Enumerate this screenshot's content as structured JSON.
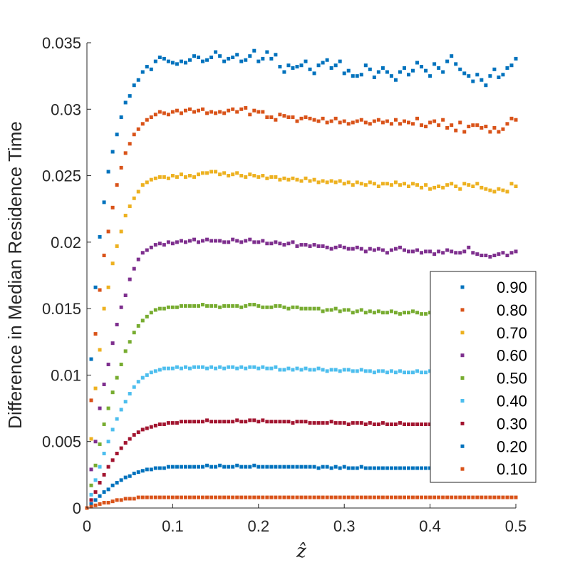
{
  "chart_data": {
    "type": "scatter",
    "title": "",
    "xlabel": "ẑ",
    "ylabel": "Difference in Median Residence Time",
    "xlim": [
      0,
      0.5
    ],
    "ylim": [
      0,
      0.035
    ],
    "grid": false,
    "legend_position": "lower-right",
    "x_ticks": [
      0,
      0.1,
      0.2,
      0.3,
      0.4,
      0.5
    ],
    "x_tick_labels": [
      "0",
      "0.1",
      "0.2",
      "0.3",
      "0.4",
      "0.5"
    ],
    "y_ticks": [
      0,
      0.005,
      0.01,
      0.015,
      0.02,
      0.025,
      0.03,
      0.035
    ],
    "y_tick_labels": [
      "0",
      "0.005",
      "0.01",
      "0.015",
      "0.02",
      "0.025",
      "0.03",
      "0.035"
    ],
    "x_start": 0,
    "x_step": 0.005,
    "series": [
      {
        "name": "0.90",
        "color": "#0072BD",
        "values": [
          0.0,
          0.0112,
          0.0166,
          0.0204,
          0.023,
          0.0253,
          0.0268,
          0.0281,
          0.0294,
          0.0305,
          0.031,
          0.0318,
          0.0322,
          0.0328,
          0.0332,
          0.033,
          0.0336,
          0.0339,
          0.0338,
          0.0336,
          0.0335,
          0.0334,
          0.0336,
          0.0335,
          0.0337,
          0.034,
          0.0339,
          0.0336,
          0.0337,
          0.0339,
          0.0343,
          0.034,
          0.0336,
          0.0338,
          0.0339,
          0.0341,
          0.0336,
          0.0337,
          0.034,
          0.0344,
          0.0336,
          0.0338,
          0.0343,
          0.0338,
          0.0341,
          0.0332,
          0.0328,
          0.0333,
          0.0331,
          0.0332,
          0.0333,
          0.0336,
          0.033,
          0.0327,
          0.0333,
          0.0335,
          0.0337,
          0.0331,
          0.0333,
          0.0336,
          0.0327,
          0.0329,
          0.0325,
          0.0325,
          0.0326,
          0.0333,
          0.033,
          0.0324,
          0.0328,
          0.0331,
          0.0328,
          0.0325,
          0.0322,
          0.0328,
          0.0331,
          0.0326,
          0.0329,
          0.0335,
          0.0332,
          0.0329,
          0.0325,
          0.0334,
          0.0331,
          0.0328,
          0.0336,
          0.034,
          0.0334,
          0.033,
          0.0327,
          0.0325,
          0.0321,
          0.0326,
          0.0322,
          0.0318,
          0.0325,
          0.033,
          0.0324,
          0.0326,
          0.0331,
          0.0333,
          0.0338,
          0.0331
        ]
      },
      {
        "name": "0.80",
        "color": "#D95319",
        "values": [
          0.0,
          0.0081,
          0.0131,
          0.0164,
          0.019,
          0.0208,
          0.0226,
          0.0243,
          0.0256,
          0.0267,
          0.0274,
          0.0281,
          0.0285,
          0.0289,
          0.0292,
          0.0294,
          0.0296,
          0.0298,
          0.0297,
          0.0296,
          0.0298,
          0.0299,
          0.0297,
          0.0299,
          0.03,
          0.0298,
          0.0299,
          0.03,
          0.0297,
          0.0298,
          0.0297,
          0.0298,
          0.0297,
          0.0299,
          0.03,
          0.0298,
          0.03,
          0.0301,
          0.0296,
          0.0299,
          0.0298,
          0.0298,
          0.0294,
          0.0294,
          0.0292,
          0.0296,
          0.0295,
          0.0294,
          0.0294,
          0.0291,
          0.0293,
          0.0294,
          0.0293,
          0.0292,
          0.0291,
          0.0293,
          0.029,
          0.0291,
          0.0293,
          0.029,
          0.0291,
          0.0289,
          0.029,
          0.0291,
          0.0292,
          0.029,
          0.0289,
          0.0291,
          0.0292,
          0.029,
          0.0291,
          0.0289,
          0.0292,
          0.0289,
          0.0291,
          0.029,
          0.0289,
          0.0293,
          0.0288,
          0.0287,
          0.029,
          0.0291,
          0.0288,
          0.0292,
          0.0286,
          0.0288,
          0.0284,
          0.029,
          0.0283,
          0.0287,
          0.0288,
          0.0288,
          0.0286,
          0.0287,
          0.0283,
          0.0286,
          0.0283,
          0.0285,
          0.0289,
          0.0293,
          0.0292,
          0.0287
        ]
      },
      {
        "name": "0.70",
        "color": "#EDB120",
        "values": [
          0.0,
          0.0052,
          0.009,
          0.0119,
          0.015,
          0.0166,
          0.0184,
          0.0197,
          0.0208,
          0.022,
          0.0227,
          0.0233,
          0.0238,
          0.0243,
          0.0245,
          0.0247,
          0.0248,
          0.0249,
          0.0249,
          0.0248,
          0.025,
          0.0249,
          0.0251,
          0.0249,
          0.025,
          0.0249,
          0.0251,
          0.0252,
          0.0252,
          0.0253,
          0.0253,
          0.0251,
          0.0252,
          0.025,
          0.0251,
          0.0252,
          0.025,
          0.0249,
          0.0251,
          0.025,
          0.0249,
          0.025,
          0.0248,
          0.0249,
          0.0249,
          0.0247,
          0.0248,
          0.0247,
          0.0248,
          0.0247,
          0.0246,
          0.0248,
          0.0246,
          0.0247,
          0.0245,
          0.0246,
          0.0245,
          0.0246,
          0.0245,
          0.0246,
          0.0244,
          0.0245,
          0.0243,
          0.0245,
          0.0244,
          0.0243,
          0.0245,
          0.0244,
          0.0242,
          0.0244,
          0.0244,
          0.0243,
          0.0245,
          0.0243,
          0.0244,
          0.0242,
          0.0244,
          0.0243,
          0.0241,
          0.0243,
          0.024,
          0.0241,
          0.0242,
          0.0241,
          0.0243,
          0.0244,
          0.0242,
          0.024,
          0.0244,
          0.0243,
          0.0242,
          0.0244,
          0.0241,
          0.024,
          0.0239,
          0.0238,
          0.024,
          0.0239,
          0.0238,
          0.0244,
          0.0242,
          0.0239
        ]
      },
      {
        "name": "0.60",
        "color": "#7E2F8E",
        "values": [
          0.0,
          0.0029,
          0.005,
          0.0075,
          0.0093,
          0.0108,
          0.0124,
          0.0138,
          0.0151,
          0.016,
          0.0172,
          0.018,
          0.0187,
          0.0192,
          0.0194,
          0.0196,
          0.0198,
          0.0199,
          0.0198,
          0.02,
          0.0199,
          0.02,
          0.0201,
          0.02,
          0.0201,
          0.0202,
          0.02,
          0.0201,
          0.0202,
          0.0201,
          0.0201,
          0.0201,
          0.02,
          0.02,
          0.0202,
          0.0201,
          0.02,
          0.0201,
          0.0202,
          0.02,
          0.02,
          0.0201,
          0.0199,
          0.0199,
          0.02,
          0.0199,
          0.0198,
          0.0199,
          0.02,
          0.0197,
          0.0198,
          0.0198,
          0.0197,
          0.0198,
          0.0197,
          0.0197,
          0.0196,
          0.0195,
          0.0196,
          0.0197,
          0.0196,
          0.0195,
          0.0195,
          0.0196,
          0.0195,
          0.0193,
          0.0195,
          0.0194,
          0.0195,
          0.0194,
          0.0192,
          0.0194,
          0.0195,
          0.0196,
          0.0194,
          0.0193,
          0.0193,
          0.0194,
          0.0192,
          0.0193,
          0.0193,
          0.0191,
          0.0193,
          0.0192,
          0.0194,
          0.0193,
          0.0192,
          0.0192,
          0.0193,
          0.0196,
          0.0192,
          0.0191,
          0.019,
          0.019,
          0.0189,
          0.019,
          0.0191,
          0.0192,
          0.019,
          0.0192,
          0.0193,
          0.0193
        ]
      },
      {
        "name": "0.50",
        "color": "#77AC30",
        "values": [
          0.0,
          0.0017,
          0.0032,
          0.0048,
          0.0063,
          0.0075,
          0.0087,
          0.0098,
          0.0108,
          0.0118,
          0.0125,
          0.0132,
          0.0137,
          0.0141,
          0.0144,
          0.0147,
          0.0149,
          0.015,
          0.015,
          0.0151,
          0.0151,
          0.0151,
          0.0152,
          0.0152,
          0.0152,
          0.0152,
          0.0152,
          0.0153,
          0.0152,
          0.0152,
          0.0152,
          0.0151,
          0.0152,
          0.0152,
          0.0152,
          0.0152,
          0.0151,
          0.0152,
          0.0153,
          0.0153,
          0.0152,
          0.0151,
          0.0151,
          0.0151,
          0.0152,
          0.0152,
          0.0151,
          0.015,
          0.0151,
          0.0151,
          0.015,
          0.015,
          0.015,
          0.015,
          0.015,
          0.0148,
          0.0149,
          0.0149,
          0.015,
          0.0148,
          0.0149,
          0.0149,
          0.0147,
          0.0148,
          0.0149,
          0.0147,
          0.0148,
          0.0147,
          0.0148,
          0.0147,
          0.0147,
          0.0148,
          0.0147,
          0.0146,
          0.0147,
          0.0147,
          0.0148,
          0.0147,
          0.0146,
          0.0146,
          0.0147,
          0.0148,
          0.0146,
          0.0146,
          0.0147,
          0.0146,
          0.0148,
          0.0146,
          0.0145,
          0.0147,
          0.0146,
          0.0147,
          0.0146,
          0.0147,
          0.0146,
          0.0147,
          0.0148,
          0.0146,
          0.0145,
          0.0147,
          0.0146,
          0.0146
        ]
      },
      {
        "name": "0.40",
        "color": "#4DBEEE",
        "values": [
          0.0,
          0.001,
          0.0021,
          0.0031,
          0.0041,
          0.005,
          0.0059,
          0.0067,
          0.0074,
          0.008,
          0.0086,
          0.0091,
          0.0095,
          0.0098,
          0.01,
          0.0102,
          0.0103,
          0.0104,
          0.0105,
          0.0105,
          0.0105,
          0.0106,
          0.0105,
          0.0106,
          0.0105,
          0.0106,
          0.0106,
          0.0106,
          0.0105,
          0.0106,
          0.0105,
          0.0106,
          0.0105,
          0.0106,
          0.0106,
          0.0105,
          0.0106,
          0.0105,
          0.0106,
          0.0106,
          0.0105,
          0.0106,
          0.0105,
          0.0105,
          0.0106,
          0.0104,
          0.0104,
          0.0105,
          0.0104,
          0.0105,
          0.0104,
          0.0105,
          0.0104,
          0.0104,
          0.0105,
          0.0104,
          0.0103,
          0.0104,
          0.0104,
          0.0103,
          0.0104,
          0.0104,
          0.0103,
          0.0103,
          0.0104,
          0.0103,
          0.0103,
          0.0102,
          0.0103,
          0.0103,
          0.0102,
          0.0103,
          0.0102,
          0.0103,
          0.0102,
          0.0102,
          0.0102,
          0.0103,
          0.0102,
          0.0102,
          0.0103,
          0.0102,
          0.0102,
          0.0103,
          0.0102,
          0.0102,
          0.0102,
          0.0103,
          0.0102,
          0.0102,
          0.0102,
          0.0102,
          0.0102,
          0.0103,
          0.0102,
          0.0103,
          0.0103,
          0.0102,
          0.0102,
          0.0102,
          0.0103,
          0.0102
        ]
      },
      {
        "name": "0.30",
        "color": "#A2142F",
        "values": [
          0.0,
          0.0006,
          0.0012,
          0.0019,
          0.0025,
          0.0031,
          0.0036,
          0.0041,
          0.0045,
          0.0049,
          0.0052,
          0.0055,
          0.0057,
          0.0059,
          0.006,
          0.0061,
          0.0062,
          0.0063,
          0.0063,
          0.0064,
          0.0064,
          0.0064,
          0.0065,
          0.0065,
          0.0065,
          0.0065,
          0.0065,
          0.0065,
          0.0066,
          0.0065,
          0.0065,
          0.0065,
          0.0065,
          0.0065,
          0.0065,
          0.0066,
          0.0065,
          0.0065,
          0.0066,
          0.0066,
          0.0065,
          0.0066,
          0.0065,
          0.0065,
          0.0065,
          0.0065,
          0.0065,
          0.0065,
          0.0064,
          0.0065,
          0.0065,
          0.0065,
          0.0064,
          0.0064,
          0.0064,
          0.0064,
          0.0064,
          0.0065,
          0.0064,
          0.0064,
          0.0064,
          0.0063,
          0.0064,
          0.0064,
          0.0064,
          0.0063,
          0.0064,
          0.0063,
          0.0063,
          0.0064,
          0.0063,
          0.0063,
          0.0063,
          0.0064,
          0.0063,
          0.0063,
          0.0063,
          0.0063,
          0.0063,
          0.0063,
          0.0063,
          0.0063,
          0.0063,
          0.0063,
          0.0063,
          0.0063,
          0.0062,
          0.0063,
          0.0063,
          0.0063,
          0.0063,
          0.0062,
          0.0063,
          0.0063,
          0.0063,
          0.0062,
          0.0063,
          0.0063,
          0.0062,
          0.0062,
          0.0063,
          0.0063
        ]
      },
      {
        "name": "0.20",
        "color": "#0072BD",
        "values": [
          0.0,
          0.0003,
          0.0006,
          0.0009,
          0.0012,
          0.0014,
          0.0017,
          0.0019,
          0.0021,
          0.0023,
          0.0024,
          0.0026,
          0.0027,
          0.0028,
          0.0029,
          0.0029,
          0.003,
          0.003,
          0.003,
          0.0031,
          0.0031,
          0.0031,
          0.0031,
          0.0031,
          0.0031,
          0.0031,
          0.0031,
          0.0031,
          0.0032,
          0.0031,
          0.0031,
          0.0032,
          0.0031,
          0.0031,
          0.0031,
          0.0032,
          0.0031,
          0.0031,
          0.0031,
          0.0032,
          0.0031,
          0.0031,
          0.0031,
          0.0031,
          0.0031,
          0.0031,
          0.0031,
          0.0031,
          0.0031,
          0.0031,
          0.0031,
          0.0031,
          0.0031,
          0.0031,
          0.003,
          0.0031,
          0.0031,
          0.003,
          0.0031,
          0.003,
          0.0031,
          0.003,
          0.003,
          0.003,
          0.0031,
          0.003,
          0.003,
          0.003,
          0.003,
          0.003,
          0.003,
          0.003,
          0.003,
          0.003,
          0.003,
          0.003,
          0.003,
          0.003,
          0.003,
          0.003,
          0.003,
          0.003,
          0.003,
          0.003,
          0.003,
          0.003,
          0.003,
          0.003,
          0.003,
          0.003,
          0.003,
          0.003,
          0.003,
          0.003,
          0.003,
          0.003,
          0.003,
          0.003,
          0.003,
          0.003,
          0.003,
          0.003
        ]
      },
      {
        "name": "0.10",
        "color": "#D95319",
        "values": [
          0.0,
          0.0001,
          0.0002,
          0.0003,
          0.0004,
          0.0004,
          0.0005,
          0.0006,
          0.0006,
          0.0007,
          0.0007,
          0.0007,
          0.0008,
          0.0008,
          0.0008,
          0.0008,
          0.0008,
          0.0008,
          0.0008,
          0.0008,
          0.0008,
          0.0008,
          0.0008,
          0.0008,
          0.0008,
          0.0008,
          0.0008,
          0.0008,
          0.0008,
          0.0008,
          0.0008,
          0.0008,
          0.0008,
          0.0008,
          0.0008,
          0.0008,
          0.0008,
          0.0008,
          0.0008,
          0.0008,
          0.0008,
          0.0008,
          0.0008,
          0.0008,
          0.0008,
          0.0008,
          0.0008,
          0.0008,
          0.0008,
          0.0008,
          0.0008,
          0.0008,
          0.0008,
          0.0008,
          0.0008,
          0.0008,
          0.0008,
          0.0008,
          0.0008,
          0.0008,
          0.0008,
          0.0008,
          0.0008,
          0.0008,
          0.0008,
          0.0008,
          0.0008,
          0.0008,
          0.0008,
          0.0008,
          0.0008,
          0.0008,
          0.0008,
          0.0008,
          0.0008,
          0.0008,
          0.0008,
          0.0008,
          0.0008,
          0.0008,
          0.0008,
          0.0008,
          0.0008,
          0.0008,
          0.0008,
          0.0008,
          0.0008,
          0.0008,
          0.0008,
          0.0008,
          0.0008,
          0.0008,
          0.0008,
          0.0008,
          0.0008,
          0.0008,
          0.0008,
          0.0008,
          0.0008,
          0.0008,
          0.0008,
          0.0008
        ]
      }
    ]
  }
}
